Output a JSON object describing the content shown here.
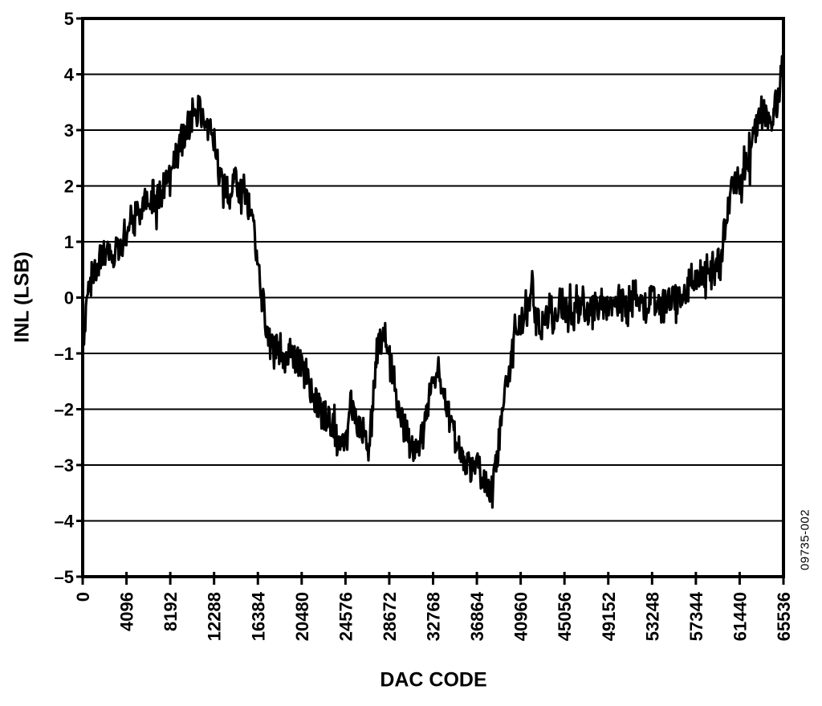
{
  "chart_data": {
    "type": "line",
    "xlabel": "DAC CODE",
    "ylabel": "INL (LSB)",
    "figure_number": "09735-002",
    "xlim": [
      0,
      65536
    ],
    "ylim": [
      -5,
      5
    ],
    "grid": "horizontal",
    "legend": "none",
    "colors": {
      "line": "#000000",
      "axis": "#000000",
      "grid": "#000000",
      "background": "#ffffff",
      "text": "#000000"
    },
    "xticks": {
      "values": [
        0,
        4096,
        8192,
        12288,
        16384,
        20480,
        24576,
        28672,
        32768,
        36864,
        40960,
        45056,
        49152,
        53248,
        57344,
        61440,
        65536
      ],
      "labels": [
        "0",
        "4096",
        "8192",
        "12288",
        "16384",
        "20480",
        "24576",
        "28672",
        "32768",
        "36864",
        "40960",
        "45056",
        "49152",
        "53248",
        "57344",
        "61440",
        "65536"
      ]
    },
    "yticks": {
      "values": [
        5,
        4,
        3,
        2,
        1,
        0,
        -1,
        -2,
        -3,
        -4,
        -5
      ],
      "labels": [
        "5",
        "4",
        "3",
        "2",
        "1",
        "0",
        "–1",
        "–2",
        "–3",
        "–4",
        "–5"
      ]
    },
    "noise_amplitude": 0.38,
    "series": [
      {
        "name": "INL",
        "points": [
          [
            0,
            -0.3
          ],
          [
            80,
            -0.9
          ],
          [
            200,
            -0.4
          ],
          [
            400,
            0.1
          ],
          [
            700,
            0.3
          ],
          [
            1000,
            0.45
          ],
          [
            1400,
            0.55
          ],
          [
            1800,
            0.75
          ],
          [
            2200,
            0.85
          ],
          [
            2600,
            0.9
          ],
          [
            3000,
            0.8
          ],
          [
            3400,
            0.9
          ],
          [
            3800,
            1.05
          ],
          [
            4200,
            1.2
          ],
          [
            4600,
            1.35
          ],
          [
            5000,
            1.45
          ],
          [
            5400,
            1.55
          ],
          [
            5800,
            1.7
          ],
          [
            6200,
            1.8
          ],
          [
            6600,
            1.8
          ],
          [
            7000,
            1.75
          ],
          [
            7400,
            1.85
          ],
          [
            7800,
            2.0
          ],
          [
            8200,
            2.2
          ],
          [
            8600,
            2.45
          ],
          [
            9000,
            2.65
          ],
          [
            9400,
            2.85
          ],
          [
            9800,
            3.05
          ],
          [
            10200,
            3.25
          ],
          [
            10600,
            3.35
          ],
          [
            11000,
            3.35
          ],
          [
            11400,
            3.25
          ],
          [
            11800,
            3.15
          ],
          [
            12200,
            2.9
          ],
          [
            12500,
            2.5
          ],
          [
            12800,
            2.15
          ],
          [
            13100,
            1.95
          ],
          [
            13500,
            1.85
          ],
          [
            13900,
            2.0
          ],
          [
            14300,
            2.1
          ],
          [
            14700,
            1.8
          ],
          [
            15100,
            1.9
          ],
          [
            15500,
            1.75
          ],
          [
            15900,
            1.3
          ],
          [
            16300,
            0.7
          ],
          [
            16700,
            0.1
          ],
          [
            17100,
            -0.5
          ],
          [
            17500,
            -0.85
          ],
          [
            18000,
            -1.0
          ],
          [
            18500,
            -0.95
          ],
          [
            19000,
            -1.05
          ],
          [
            19500,
            -0.95
          ],
          [
            20000,
            -1.05
          ],
          [
            20500,
            -1.15
          ],
          [
            21000,
            -1.45
          ],
          [
            21500,
            -1.75
          ],
          [
            22000,
            -1.95
          ],
          [
            22500,
            -2.05
          ],
          [
            23000,
            -2.2
          ],
          [
            23500,
            -2.45
          ],
          [
            24000,
            -2.6
          ],
          [
            24400,
            -2.7
          ],
          [
            24800,
            -2.45
          ],
          [
            25100,
            -1.95
          ],
          [
            25400,
            -2.1
          ],
          [
            25800,
            -2.3
          ],
          [
            26200,
            -2.45
          ],
          [
            26600,
            -2.6
          ],
          [
            26900,
            -2.5
          ],
          [
            27200,
            -1.8
          ],
          [
            27600,
            -0.95
          ],
          [
            28000,
            -0.6
          ],
          [
            28400,
            -0.75
          ],
          [
            28800,
            -1.2
          ],
          [
            29200,
            -1.6
          ],
          [
            29600,
            -1.95
          ],
          [
            30000,
            -2.3
          ],
          [
            30400,
            -2.55
          ],
          [
            30800,
            -2.7
          ],
          [
            31200,
            -2.75
          ],
          [
            31600,
            -2.6
          ],
          [
            32000,
            -2.25
          ],
          [
            32400,
            -1.85
          ],
          [
            32800,
            -1.45
          ],
          [
            33200,
            -1.25
          ],
          [
            33600,
            -1.5
          ],
          [
            34000,
            -1.9
          ],
          [
            34400,
            -2.2
          ],
          [
            34800,
            -2.4
          ],
          [
            35200,
            -2.6
          ],
          [
            35600,
            -2.8
          ],
          [
            36000,
            -2.95
          ],
          [
            36400,
            -3.05
          ],
          [
            36800,
            -3.0
          ],
          [
            37200,
            -3.1
          ],
          [
            37600,
            -3.3
          ],
          [
            38000,
            -3.45
          ],
          [
            38300,
            -3.35
          ],
          [
            38600,
            -3.0
          ],
          [
            39000,
            -2.45
          ],
          [
            39400,
            -1.85
          ],
          [
            39800,
            -1.35
          ],
          [
            40200,
            -0.95
          ],
          [
            40600,
            -0.65
          ],
          [
            41000,
            -0.45
          ],
          [
            41400,
            -0.35
          ],
          [
            41800,
            -0.2
          ],
          [
            41950,
            0.3
          ],
          [
            42050,
            0.65
          ],
          [
            42150,
            0.1
          ],
          [
            42400,
            -0.35
          ],
          [
            42800,
            -0.5
          ],
          [
            43200,
            -0.3
          ],
          [
            43600,
            -0.2
          ],
          [
            44000,
            -0.35
          ],
          [
            44400,
            -0.25
          ],
          [
            44800,
            -0.1
          ],
          [
            45200,
            -0.25
          ],
          [
            45600,
            -0.35
          ],
          [
            46000,
            -0.25
          ],
          [
            46400,
            -0.1
          ],
          [
            46800,
            -0.05
          ],
          [
            47200,
            -0.2
          ],
          [
            47600,
            -0.3
          ],
          [
            48000,
            -0.1
          ],
          [
            48400,
            -0.05
          ],
          [
            48800,
            -0.2
          ],
          [
            49200,
            -0.25
          ],
          [
            49600,
            -0.1
          ],
          [
            50000,
            -0.05
          ],
          [
            50400,
            -0.1
          ],
          [
            50800,
            -0.2
          ],
          [
            51200,
            -0.05
          ],
          [
            51600,
            0.05
          ],
          [
            52000,
            -0.1
          ],
          [
            52400,
            -0.2
          ],
          [
            52800,
            -0.05
          ],
          [
            53200,
            0.05
          ],
          [
            53600,
            -0.1
          ],
          [
            54000,
            -0.25
          ],
          [
            54400,
            -0.15
          ],
          [
            54800,
            0.0
          ],
          [
            55200,
            0.05
          ],
          [
            55600,
            -0.05
          ],
          [
            56000,
            0.0
          ],
          [
            56400,
            0.15
          ],
          [
            56800,
            0.25
          ],
          [
            57200,
            0.2
          ],
          [
            57600,
            0.35
          ],
          [
            58000,
            0.45
          ],
          [
            58400,
            0.3
          ],
          [
            58800,
            0.45
          ],
          [
            59200,
            0.5
          ],
          [
            59600,
            0.55
          ],
          [
            60000,
            0.9
          ],
          [
            60300,
            1.6
          ],
          [
            60600,
            1.95
          ],
          [
            61000,
            2.05
          ],
          [
            61400,
            1.95
          ],
          [
            61800,
            2.15
          ],
          [
            62200,
            2.35
          ],
          [
            62600,
            2.7
          ],
          [
            63000,
            3.1
          ],
          [
            63300,
            3.35
          ],
          [
            63600,
            3.25
          ],
          [
            64000,
            3.35
          ],
          [
            64400,
            3.25
          ],
          [
            64800,
            3.4
          ],
          [
            65100,
            3.55
          ],
          [
            65300,
            3.8
          ],
          [
            65536,
            4.4
          ]
        ]
      }
    ]
  }
}
